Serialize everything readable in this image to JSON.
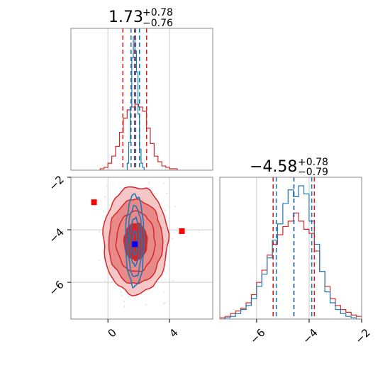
{
  "chart_data": {
    "type": "corner",
    "colors": {
      "red": "#d62728",
      "blue": "#1f77b4",
      "fill_dark": "#d62728",
      "fill_mid": "#e8898a",
      "fill_light": "#f5c7c7",
      "grid": "#cccccc",
      "frame": "#888888",
      "marker_red": "#ff0000",
      "marker_blue": "#0000ff"
    },
    "params": [
      {
        "title_main": "1.73",
        "title_sup": "+0.78",
        "title_sub": "−0.76",
        "range": [
          -2.4,
          6.8
        ],
        "ticks": [
          0,
          4
        ],
        "tick_labels": [
          "0",
          "4"
        ]
      },
      {
        "title_main": "−4.58",
        "title_sup": "+0.78",
        "title_sub": "−0.79",
        "range": [
          -7.4,
          -2.0
        ],
        "ticks": [
          -6,
          -4,
          -2
        ],
        "tick_labels": [
          "−6",
          "−4",
          "−2"
        ]
      }
    ],
    "marginal_1": {
      "red_quantiles": [
        0.97,
        1.73,
        2.51
      ],
      "blue_quantiles": [
        1.5,
        1.8,
        2.05
      ],
      "red_hist": {
        "edges": [
          -0.5,
          -0.25,
          0,
          0.25,
          0.5,
          0.75,
          1.0,
          1.25,
          1.5,
          1.75,
          2.0,
          2.25,
          2.5,
          2.75,
          3.0,
          3.25,
          3.5,
          3.75,
          4.0,
          4.25,
          4.5
        ],
        "counts": [
          0.01,
          0.02,
          0.05,
          0.1,
          0.17,
          0.27,
          0.37,
          0.43,
          0.45,
          0.47,
          0.45,
          0.42,
          0.3,
          0.19,
          0.1,
          0.06,
          0.03,
          0.02,
          0.01,
          0.01
        ]
      },
      "blue_hist": {
        "edges": [
          1.25,
          1.35,
          1.45,
          1.55,
          1.65,
          1.75,
          1.85,
          1.95,
          2.05,
          2.15,
          2.25,
          2.35
        ],
        "counts": [
          0.05,
          0.2,
          0.45,
          0.8,
          0.95,
          0.85,
          0.7,
          0.4,
          0.15,
          0.05,
          0.02
        ]
      }
    },
    "marginal_2": {
      "red_quantiles": [
        -5.37,
        -4.58,
        -3.8
      ],
      "blue_quantiles": [
        -5.25,
        -4.58,
        -3.9
      ],
      "red_hist": {
        "edges": [
          -7.4,
          -7.2,
          -7.0,
          -6.8,
          -6.6,
          -6.4,
          -6.2,
          -6.0,
          -5.8,
          -5.6,
          -5.4,
          -5.2,
          -5.0,
          -4.8,
          -4.6,
          -4.4,
          -4.2,
          -4.0,
          -3.8,
          -3.6,
          -3.4,
          -3.2,
          -3.0,
          -2.8,
          -2.6,
          -2.4,
          -2.2,
          -2.0
        ],
        "counts": [
          0.01,
          0.02,
          0.04,
          0.06,
          0.08,
          0.12,
          0.18,
          0.27,
          0.36,
          0.47,
          0.55,
          0.62,
          0.68,
          0.72,
          0.78,
          0.72,
          0.66,
          0.63,
          0.5,
          0.35,
          0.24,
          0.15,
          0.1,
          0.07,
          0.05,
          0.03,
          0.02
        ]
      },
      "blue_hist": {
        "edges": [
          -7.4,
          -7.2,
          -7.0,
          -6.8,
          -6.6,
          -6.4,
          -6.2,
          -6.0,
          -5.8,
          -5.6,
          -5.4,
          -5.2,
          -5.0,
          -4.8,
          -4.6,
          -4.4,
          -4.2,
          -4.0,
          -3.8,
          -3.6,
          -3.4,
          -3.2,
          -3.0,
          -2.8,
          -2.6,
          -2.4,
          -2.2,
          -2.0
        ],
        "counts": [
          0.0,
          0.01,
          0.02,
          0.04,
          0.07,
          0.1,
          0.15,
          0.24,
          0.33,
          0.45,
          0.58,
          0.7,
          0.85,
          0.95,
          0.9,
          0.98,
          0.92,
          0.72,
          0.55,
          0.35,
          0.2,
          0.12,
          0.07,
          0.04,
          0.02,
          0.01,
          0.0
        ]
      }
    },
    "joint": {
      "red_fill_levels": [
        {
          "cx": 1.8,
          "cy": -4.4,
          "rx": 2.1,
          "ry": 2.05
        },
        {
          "cx": 1.8,
          "cy": -4.45,
          "rx": 1.75,
          "ry": 1.6
        },
        {
          "cx": 1.8,
          "cy": -4.45,
          "rx": 1.25,
          "ry": 1.15
        },
        {
          "cx": 1.8,
          "cy": -4.45,
          "rx": 0.75,
          "ry": 0.7
        }
      ],
      "blue_contours": [
        {
          "cx": 1.75,
          "cy": -4.4,
          "rx": 0.6,
          "ry": 1.75
        },
        {
          "cx": 1.75,
          "cy": -4.45,
          "rx": 0.45,
          "ry": 1.35
        },
        {
          "cx": 1.75,
          "cy": -4.45,
          "rx": 0.3,
          "ry": 0.9
        },
        {
          "cx": 1.75,
          "cy": -4.5,
          "rx": 0.15,
          "ry": 0.45
        }
      ],
      "red_markers": [
        {
          "x": -0.9,
          "y": -2.95
        },
        {
          "x": 4.8,
          "y": -4.05
        }
      ],
      "blue_marker": {
        "x": 1.75,
        "y": -4.55
      }
    }
  }
}
